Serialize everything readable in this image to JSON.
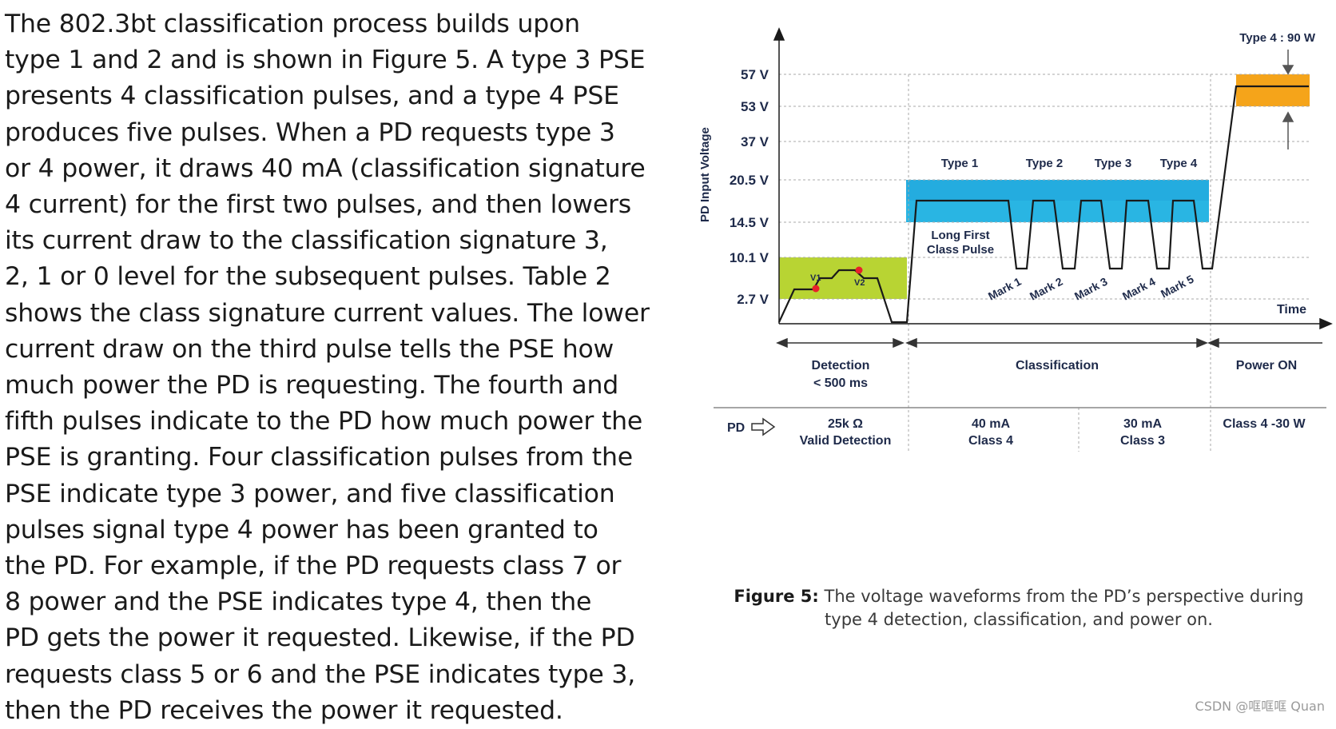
{
  "body_lines": [
    "The 802.3bt classification process builds upon",
    "type 1 and 2 and is shown in Figure 5. A type 3 PSE",
    "presents 4 classification pulses, and a type 4 PSE",
    "produces five pulses. When a PD requests type 3",
    "or 4 power, it draws 40 mA (classification signature",
    "4 current) for the first two pulses, and then lowers",
    "its current draw to the classification signature 3,",
    "2, 1 or 0 level for the subsequent pulses. Table 2",
    "shows the class signature current values. The lower",
    "current draw on the third pulse tells the PSE how",
    "much power the PD is requesting. The fourth and",
    "fifth pulses indicate to the PD how much power the",
    "PSE is granting. Four classification pulses from the",
    "PSE indicate type 3 power, and five classification",
    "pulses signal type 4 power has been granted to",
    "the PD. For example, if the PD requests class 7 or",
    "8 power and the PSE indicates type 4, then the",
    "PD gets the power it requested. Likewise, if the PD",
    "requests class 5 or 6 and the PSE indicates type 3,",
    "then the PD receives the power it requested."
  ],
  "figure": {
    "y_axis_label": "PD Input Voltage",
    "x_axis_label": "Time",
    "voltage_ticks": [
      "57 V",
      "53 V",
      "37 V",
      "20.5 V",
      "14.5 V",
      "10.1 V",
      "2.7 V"
    ],
    "type_power_label": "Type 4 : 90 W",
    "type_labels": [
      "Type 1",
      "Type 2",
      "Type 3",
      "Type 4"
    ],
    "long_pulse_label": [
      "Long First",
      "Class Pulse"
    ],
    "mark_labels": [
      "Mark 1",
      "Mark 2",
      "Mark 3",
      "Mark 4",
      "Mark 5"
    ],
    "v1_label": "V1",
    "v2_label": "V2",
    "phases": {
      "detection": [
        "Detection",
        "< 500 ms"
      ],
      "classification": "Classification",
      "power_on": "Power ON"
    },
    "pd_row": {
      "label": "PD",
      "detection": [
        "25k Ω",
        "Valid Detection"
      ],
      "class4": [
        "40 mA",
        "Class 4"
      ],
      "class3": [
        "30 mA",
        "Class 3"
      ],
      "power": "Class 4 -30 W"
    },
    "colors": {
      "detection_band": "#b8d433",
      "class_band": "#29b5e3",
      "class_band_dark": "#1d9bd6",
      "power_band": "#f5a41a",
      "dot": "#e8202a",
      "line": "#1a1a1a",
      "grid": "#aaaaaa"
    }
  },
  "caption": {
    "label": "Figure 5:",
    "line1": "The voltage waveforms from the PD’s perspective during",
    "line2": "type 4 detection, classification, and power on."
  },
  "watermark": "CSDN @哐哐哐 Quan"
}
